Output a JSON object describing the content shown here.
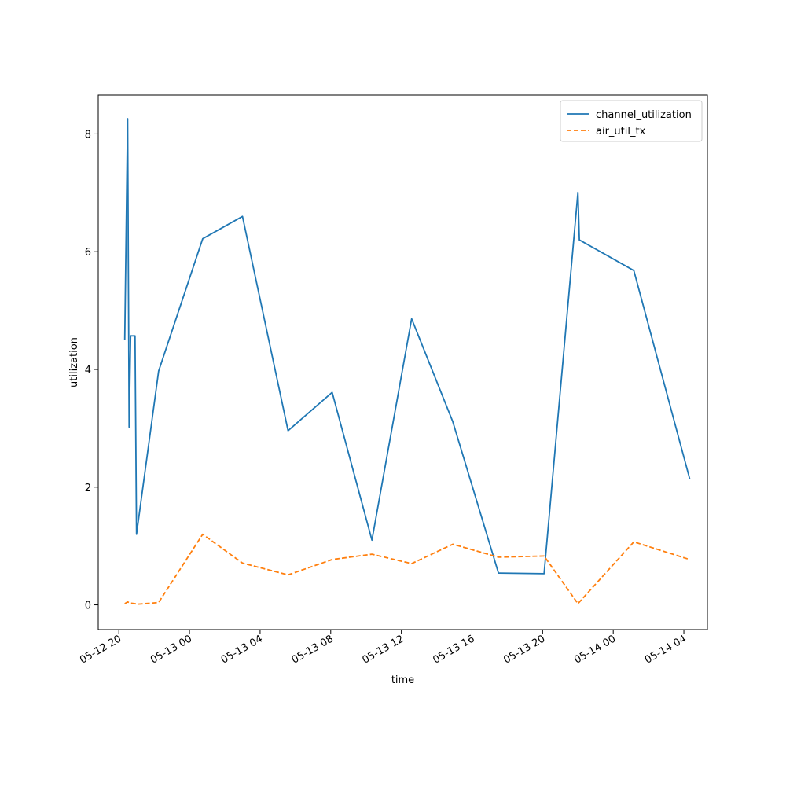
{
  "chart_data": {
    "type": "line",
    "title": "",
    "xlabel": "time",
    "ylabel": "utilization",
    "x_tick_labels": [
      "05-12 20",
      "05-13 00",
      "05-13 04",
      "05-13 08",
      "05-13 12",
      "05-13 16",
      "05-13 20",
      "05-14 00",
      "05-14 04"
    ],
    "x_ticks": [
      "2024-05-12T20:00",
      "2024-05-13T00:00",
      "2024-05-13T04:00",
      "2024-05-13T08:00",
      "2024-05-13T12:00",
      "2024-05-13T16:00",
      "2024-05-13T20:00",
      "2024-05-14T00:00",
      "2024-05-14T04:00"
    ],
    "xlim": [
      "2024-05-12T18:50",
      "2024-05-14T05:20"
    ],
    "y_ticks": [
      0,
      2,
      4,
      6,
      8
    ],
    "ylim": [
      -0.42,
      8.66
    ],
    "grid": false,
    "legend_position": "top-right",
    "series": [
      {
        "name": "channel_utilization",
        "color": "#1f77b4",
        "style": "solid",
        "points": [
          [
            "2024-05-12T20:20",
            4.5
          ],
          [
            "2024-05-12T20:30",
            8.26
          ],
          [
            "2024-05-12T20:35",
            3.02
          ],
          [
            "2024-05-12T20:40",
            4.57
          ],
          [
            "2024-05-12T20:55",
            4.57
          ],
          [
            "2024-05-12T21:00",
            1.2
          ],
          [
            "2024-05-12T22:15",
            3.97
          ],
          [
            "2024-05-13T00:45",
            6.22
          ],
          [
            "2024-05-13T03:00",
            6.6
          ],
          [
            "2024-05-13T05:35",
            2.96
          ],
          [
            "2024-05-13T08:05",
            3.61
          ],
          [
            "2024-05-13T10:20",
            1.1
          ],
          [
            "2024-05-13T12:35",
            4.86
          ],
          [
            "2024-05-13T14:55",
            3.11
          ],
          [
            "2024-05-13T17:30",
            0.54
          ],
          [
            "2024-05-13T20:05",
            0.53
          ],
          [
            "2024-05-13T22:00",
            7.01
          ],
          [
            "2024-05-13T22:05",
            6.2
          ],
          [
            "2024-05-14T01:10",
            5.68
          ],
          [
            "2024-05-14T04:20",
            2.14
          ]
        ]
      },
      {
        "name": "air_util_tx",
        "color": "#ff7f0e",
        "style": "dashed",
        "points": [
          [
            "2024-05-12T20:20",
            0.02
          ],
          [
            "2024-05-12T20:30",
            0.05
          ],
          [
            "2024-05-12T20:35",
            0.04
          ],
          [
            "2024-05-12T20:40",
            0.03
          ],
          [
            "2024-05-12T20:55",
            0.02
          ],
          [
            "2024-05-12T21:00",
            0.01
          ],
          [
            "2024-05-12T22:15",
            0.04
          ],
          [
            "2024-05-13T00:45",
            1.2
          ],
          [
            "2024-05-13T03:00",
            0.71
          ],
          [
            "2024-05-13T05:35",
            0.51
          ],
          [
            "2024-05-13T08:05",
            0.77
          ],
          [
            "2024-05-13T10:20",
            0.86
          ],
          [
            "2024-05-13T12:35",
            0.7
          ],
          [
            "2024-05-13T14:55",
            1.03
          ],
          [
            "2024-05-13T17:30",
            0.81
          ],
          [
            "2024-05-13T20:05",
            0.83
          ],
          [
            "2024-05-13T22:00",
            0.02
          ],
          [
            "2024-05-14T01:10",
            1.07
          ],
          [
            "2024-05-14T04:20",
            0.77
          ]
        ]
      }
    ]
  }
}
